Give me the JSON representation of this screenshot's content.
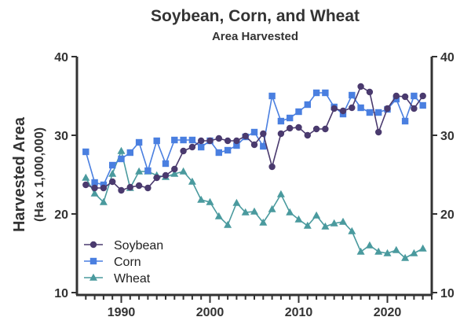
{
  "chart_data": {
    "type": "line",
    "title": "Soybean, Corn, and Wheat",
    "subtitle": "Area Harvested",
    "ylabel": "Harvested Area",
    "ylabel_sub": "(Ha x 1,000,000)",
    "xlabel": "",
    "xlim": [
      1985,
      2025
    ],
    "ylim": [
      10,
      40
    ],
    "xticks": [
      1990,
      2000,
      2010,
      2020
    ],
    "yticks": [
      10,
      20,
      30,
      40
    ],
    "legend_position": "bottom-left",
    "grid": false,
    "x": [
      1986,
      1987,
      1988,
      1989,
      1990,
      1991,
      1992,
      1993,
      1994,
      1995,
      1996,
      1997,
      1998,
      1999,
      2000,
      2001,
      2002,
      2003,
      2004,
      2005,
      2006,
      2007,
      2008,
      2009,
      2010,
      2011,
      2012,
      2013,
      2014,
      2015,
      2016,
      2017,
      2018,
      2019,
      2020,
      2021,
      2022,
      2023,
      2024
    ],
    "series": [
      {
        "name": "Soybean",
        "color": "#4a3a6e",
        "marker": "circle",
        "values": [
          23.7,
          23.3,
          23.3,
          24.1,
          23.0,
          23.4,
          23.6,
          23.3,
          24.6,
          24.9,
          25.7,
          28.0,
          28.5,
          29.3,
          29.3,
          29.6,
          29.3,
          29.3,
          29.9,
          28.8,
          30.2,
          26.0,
          30.2,
          30.9,
          31.0,
          30.0,
          30.8,
          30.8,
          33.4,
          33.1,
          33.5,
          36.2,
          35.5,
          30.4,
          33.4,
          35.0,
          34.9,
          33.4,
          35.0
        ]
      },
      {
        "name": "Corn",
        "color": "#4a7fe0",
        "marker": "square",
        "values": [
          27.9,
          24.0,
          23.7,
          26.2,
          27.0,
          27.8,
          29.1,
          25.5,
          29.3,
          26.4,
          29.4,
          29.4,
          29.4,
          28.5,
          29.3,
          27.8,
          28.1,
          28.7,
          29.8,
          30.4,
          28.6,
          35.0,
          31.8,
          32.2,
          33.0,
          33.9,
          35.4,
          35.4,
          33.6,
          32.7,
          35.1,
          33.5,
          32.9,
          32.9,
          33.3,
          34.6,
          31.8,
          35.0,
          33.8
        ]
      },
      {
        "name": "Wheat",
        "color": "#4a9a9e",
        "marker": "triangle",
        "values": [
          24.6,
          22.6,
          21.5,
          25.1,
          28.0,
          23.3,
          25.4,
          25.4,
          24.9,
          24.7,
          25.1,
          25.4,
          24.1,
          21.8,
          21.5,
          19.7,
          18.6,
          21.4,
          20.2,
          20.3,
          18.9,
          20.6,
          22.5,
          20.2,
          19.3,
          18.5,
          19.8,
          18.4,
          18.8,
          19.0,
          17.8,
          15.2,
          16.0,
          15.2,
          15.0,
          15.4,
          14.4,
          15.0,
          15.6
        ]
      }
    ]
  }
}
